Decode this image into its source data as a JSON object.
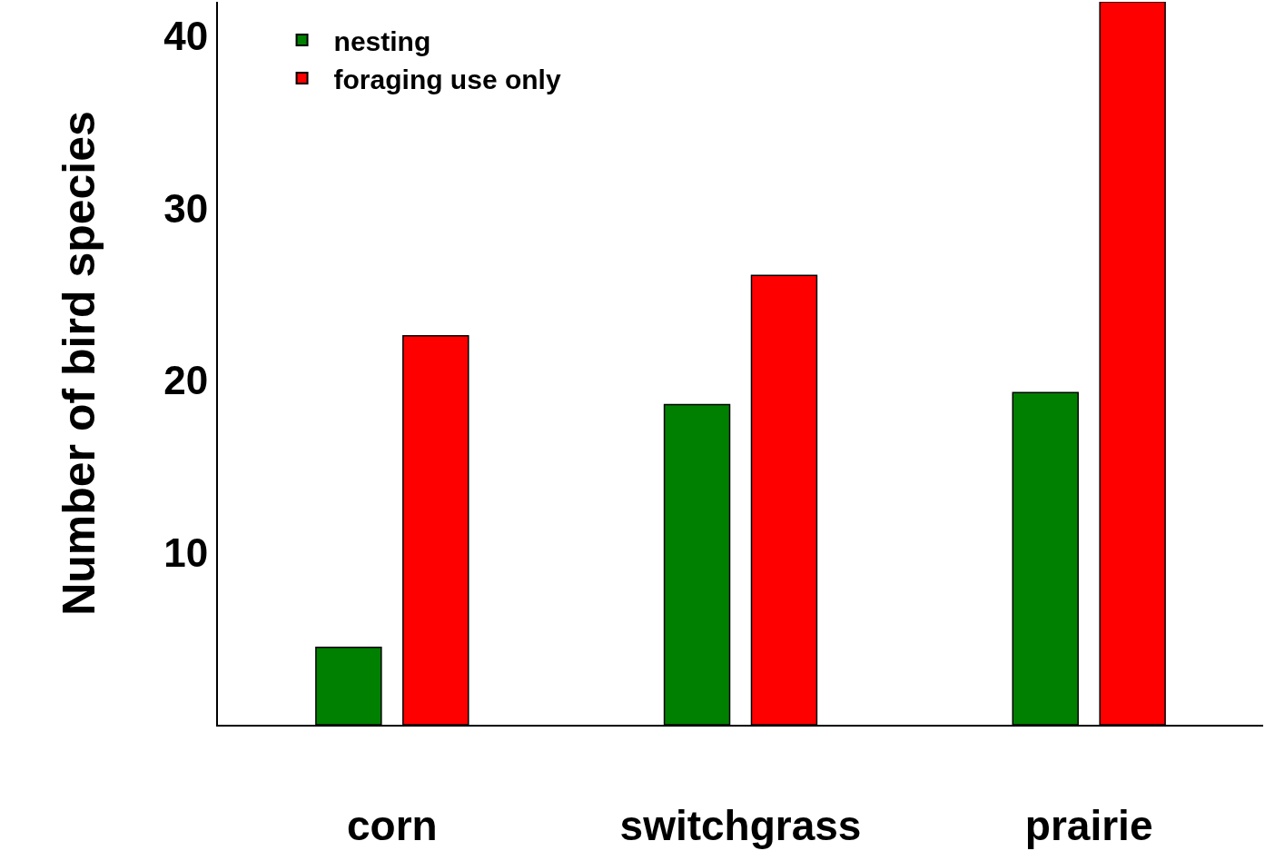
{
  "chart_data": {
    "type": "bar",
    "ylabel": "Number of bird species",
    "categories": [
      "corn",
      "switchgrass",
      "prairie"
    ],
    "series": [
      {
        "name": "nesting",
        "color": "#008000",
        "values": [
          4.5,
          18.6,
          19.3
        ]
      },
      {
        "name": "foraging use only",
        "color": "#ff0000",
        "values": [
          22.6,
          26.1,
          42.0
        ]
      }
    ],
    "ylim": [
      0,
      42
    ],
    "yticks": [
      10,
      20,
      30,
      40
    ],
    "legend": "top left"
  }
}
